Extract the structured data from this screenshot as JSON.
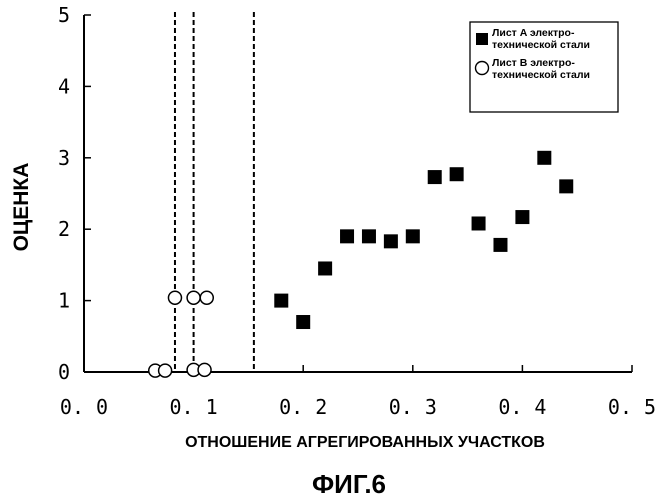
{
  "chart_data": {
    "type": "scatter",
    "xlabel": "ОТНОШЕНИЕ АГРЕГИРОВАННЫХ УЧАСТКОВ",
    "ylabel": "ОЦЕНКА",
    "caption": "ФИГ.6",
    "xlim": [
      0.0,
      0.5
    ],
    "ylim": [
      0,
      5
    ],
    "xticks": [
      "0. 0",
      "0. 1",
      "0. 2",
      "0. 3",
      "0. 4",
      "0. 5"
    ],
    "xtick_values": [
      0.0,
      0.1,
      0.2,
      0.3,
      0.4,
      0.5
    ],
    "yticks": [
      "0",
      "1",
      "2",
      "3",
      "4",
      "5"
    ],
    "ytick_values": [
      0,
      1,
      2,
      3,
      4,
      5
    ],
    "grid": false,
    "legend_position": "top-right",
    "reference_lines": [
      0.083,
      0.1,
      0.155
    ],
    "series": [
      {
        "name_lines": [
          "Лист A электро-",
          "технической стали"
        ],
        "marker": "filled-square",
        "x": [
          0.18,
          0.2,
          0.22,
          0.24,
          0.26,
          0.28,
          0.3,
          0.32,
          0.34,
          0.36,
          0.38,
          0.4,
          0.42,
          0.44
        ],
        "y": [
          1.0,
          0.7,
          1.45,
          1.9,
          1.9,
          1.83,
          1.9,
          2.73,
          2.77,
          2.08,
          1.78,
          2.17,
          3.0,
          2.6
        ]
      },
      {
        "name_lines": [
          "Лист B электро-",
          "технической стали"
        ],
        "marker": "open-circle",
        "x": [
          0.083,
          0.1,
          0.112,
          0.065,
          0.074,
          0.1,
          0.11
        ],
        "y": [
          1.04,
          1.04,
          1.04,
          0.02,
          0.02,
          0.03,
          0.03
        ]
      }
    ]
  }
}
